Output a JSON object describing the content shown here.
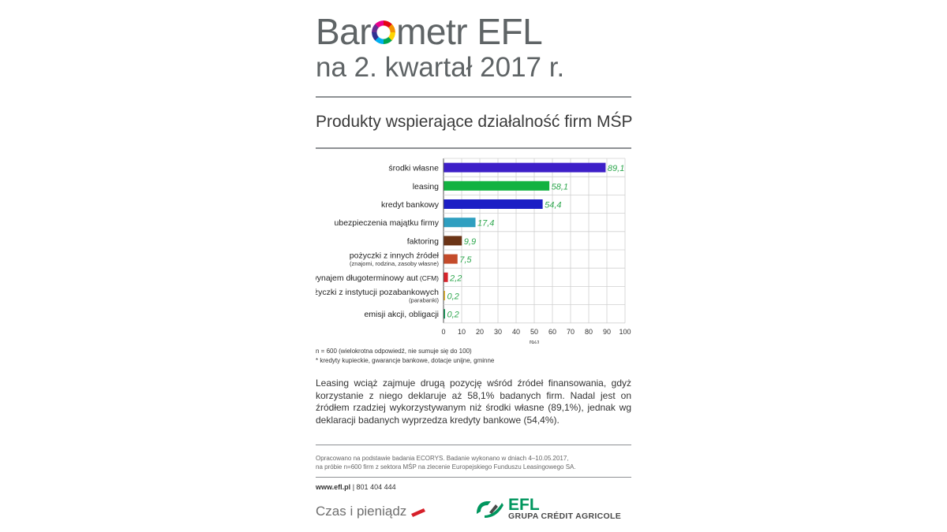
{
  "header": {
    "title_prefix": "Bar",
    "title_suffix": "metr EFL",
    "title_line2": "na 2. kwartał 2017 r."
  },
  "subtitle": "Produkty wspierające działalność firm MŚP",
  "chart_data": {
    "type": "bar",
    "orientation": "horizontal",
    "categories": [
      "środki własne",
      "leasing",
      "kredyt bankowy",
      "ubezpieczenia majątku firmy",
      "faktoring",
      "pożyczki z innych źródeł",
      "wynajem długoterminowy aut",
      "pożyczki z instytucji pozabankowych",
      "emisji akcji, obligacji"
    ],
    "category_sublabels": [
      "",
      "",
      "",
      "",
      "",
      "(znajomi, rodzina, zasoby własne)",
      "(CFM)",
      "(parabanki)",
      ""
    ],
    "values": [
      89.1,
      58.1,
      54.4,
      17.4,
      9.9,
      7.5,
      2.2,
      0.2,
      0.2
    ],
    "value_labels": [
      "89,1",
      "58,1",
      "54,4",
      "17,4",
      "9,9",
      "7,5",
      "2,2",
      "0,2",
      "0,2"
    ],
    "bar_colors": [
      "#3d1fc8",
      "#12b241",
      "#1c1fc5",
      "#2f9fc0",
      "#6b3416",
      "#c44b2a",
      "#d8232a",
      "#e9b92a",
      "#139b57"
    ],
    "label_color": "#2fa84f",
    "xlim": [
      0,
      100
    ],
    "xticks": [
      0,
      10,
      20,
      30,
      40,
      50,
      60,
      70,
      80,
      90,
      100
    ],
    "xlabel": "[%]",
    "grid": true
  },
  "notes": {
    "line1": "n = 600 (wielokrotna odpowiedź, nie sumuje się do 100)",
    "line2": "* kredyty kupieckie, gwarancje bankowe, dotacje unijne, gminne"
  },
  "paragraph": "Leasing wciąż zajmuje drugą pozycję wśród źródeł finansowania, gdyż korzystanie z niego deklaruje aż 58,1% badanych firm. Nadal jest on źródłem rzadziej wykorzystywanym niż środki własne (89,1%), jednak wg deklaracji badanych wyprzedza kredyty bankowe (54,4%).",
  "source": {
    "line1": "Opracowano na podstawie badania ECORYS. Badanie wykonano w dniach 4–10.05.2017,",
    "line2": "na próbie n=600 firm z sektora MŚP na zlecenie Europejskiego Funduszu Leasingowego SA."
  },
  "contact": {
    "website": "www.efl.pl",
    "separator": "|",
    "phone": "801 404 444"
  },
  "footer": {
    "tagline": "Czas i pieniądz",
    "brand_name": "EFL",
    "brand_group": "GRUPA CRÉDIT AGRICOLE"
  }
}
